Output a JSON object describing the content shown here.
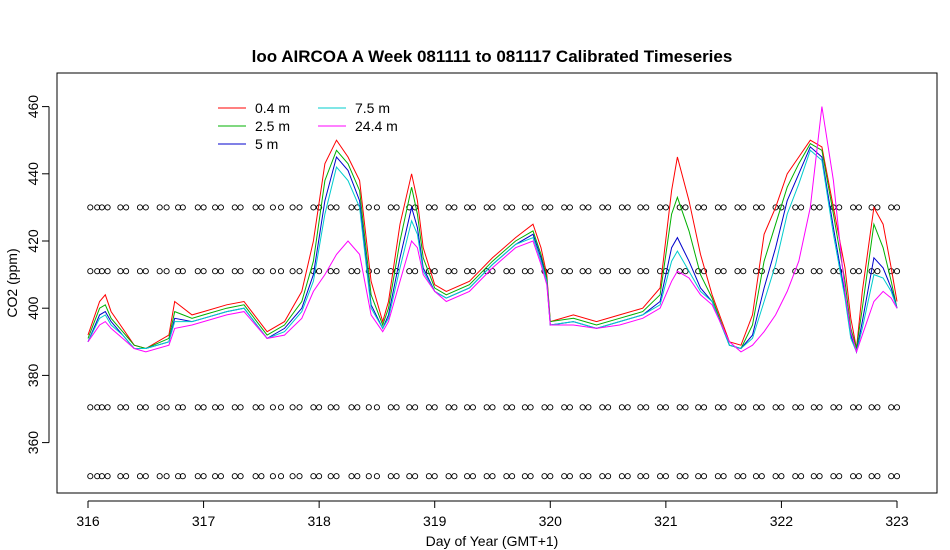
{
  "chart_data": {
    "type": "line",
    "title": "loo AIRCOA A  Week 081111 to 081117  Calibrated Timeseries",
    "xlabel": "Day of Year (GMT+1)",
    "ylabel": "CO2 (ppm)",
    "xlim": [
      316,
      323
    ],
    "ylim": [
      345,
      470
    ],
    "x_ticks": [
      316,
      317,
      318,
      319,
      320,
      321,
      322,
      323
    ],
    "y_ticks": [
      360,
      380,
      400,
      420,
      440,
      460
    ],
    "legend": "top-left",
    "series": [
      {
        "name": "0.4 m",
        "color": "#ff0000",
        "x": [
          316.0,
          316.1,
          316.15,
          316.2,
          316.3,
          316.4,
          316.5,
          316.7,
          316.75,
          316.9,
          317.0,
          317.2,
          317.35,
          317.55,
          317.7,
          317.85,
          317.95,
          318.05,
          318.15,
          318.25,
          318.35,
          318.45,
          318.55,
          318.6,
          318.7,
          318.8,
          318.85,
          318.9,
          319.0,
          319.1,
          319.3,
          319.5,
          319.7,
          319.85,
          319.92,
          319.97,
          320.0,
          320.2,
          320.4,
          320.6,
          320.8,
          320.95,
          321.05,
          321.1,
          321.2,
          321.3,
          321.4,
          321.55,
          321.65,
          321.75,
          321.85,
          321.95,
          322.05,
          322.15,
          322.25,
          322.35,
          322.45,
          322.55,
          322.6,
          322.65,
          322.7,
          322.8,
          322.88,
          322.95,
          323.0
        ],
        "values": [
          392,
          402,
          404,
          399,
          394,
          389,
          388,
          392,
          402,
          398,
          399,
          401,
          402,
          393,
          396,
          405,
          420,
          443,
          450,
          445,
          438,
          408,
          396,
          402,
          425,
          440,
          432,
          418,
          407,
          405,
          408,
          415,
          421,
          425,
          418,
          410,
          396,
          398,
          396,
          398,
          400,
          406,
          435,
          445,
          432,
          416,
          404,
          390,
          389,
          398,
          422,
          430,
          440,
          445,
          450,
          448,
          430,
          412,
          397,
          388,
          405,
          430,
          425,
          412,
          402
        ]
      },
      {
        "name": "2.5 m",
        "color": "#00b000",
        "x": [
          316.0,
          316.1,
          316.15,
          316.2,
          316.3,
          316.4,
          316.5,
          316.7,
          316.75,
          316.9,
          317.0,
          317.2,
          317.35,
          317.55,
          317.7,
          317.85,
          317.95,
          318.05,
          318.15,
          318.25,
          318.35,
          318.45,
          318.55,
          318.6,
          318.7,
          318.8,
          318.85,
          318.9,
          319.0,
          319.1,
          319.3,
          319.5,
          319.7,
          319.85,
          319.92,
          319.97,
          320.0,
          320.2,
          320.4,
          320.6,
          320.8,
          320.95,
          321.05,
          321.1,
          321.2,
          321.3,
          321.4,
          321.55,
          321.65,
          321.75,
          321.85,
          321.95,
          322.05,
          322.15,
          322.25,
          322.35,
          322.45,
          322.55,
          322.6,
          322.65,
          322.7,
          322.8,
          322.88,
          322.95,
          323.0
        ],
        "values": [
          391,
          400,
          401,
          397,
          393,
          389,
          388,
          391,
          399,
          397,
          398,
          400,
          401,
          392,
          395,
          402,
          414,
          438,
          447,
          443,
          435,
          404,
          395,
          400,
          420,
          436,
          428,
          415,
          406,
          404,
          407,
          414,
          420,
          423,
          416,
          409,
          396,
          397,
          395,
          397,
          399,
          404,
          428,
          433,
          423,
          410,
          403,
          389,
          388,
          395,
          414,
          425,
          436,
          443,
          449,
          447,
          428,
          408,
          394,
          388,
          400,
          425,
          418,
          408,
          400
        ]
      },
      {
        "name": "5 m",
        "color": "#0000cc",
        "x": [
          316.0,
          316.1,
          316.15,
          316.2,
          316.3,
          316.4,
          316.5,
          316.7,
          316.75,
          316.9,
          317.0,
          317.2,
          317.35,
          317.55,
          317.7,
          317.85,
          317.95,
          318.05,
          318.15,
          318.25,
          318.35,
          318.45,
          318.55,
          318.6,
          318.7,
          318.8,
          318.85,
          318.9,
          319.0,
          319.1,
          319.3,
          319.5,
          319.7,
          319.85,
          319.92,
          319.97,
          320.0,
          320.2,
          320.4,
          320.6,
          320.8,
          320.95,
          321.05,
          321.1,
          321.2,
          321.3,
          321.4,
          321.55,
          321.65,
          321.75,
          321.85,
          321.95,
          322.05,
          322.15,
          322.25,
          322.35,
          322.45,
          322.55,
          322.6,
          322.65,
          322.7,
          322.8,
          322.88,
          322.95,
          323.0
        ],
        "values": [
          390,
          398,
          399,
          396,
          392,
          388,
          388,
          390,
          397,
          396,
          397,
          399,
          400,
          391,
          394,
          400,
          410,
          432,
          445,
          441,
          432,
          401,
          394,
          398,
          415,
          430,
          424,
          412,
          405,
          403,
          406,
          413,
          419,
          422,
          415,
          408,
          395,
          396,
          394,
          396,
          398,
          402,
          418,
          421,
          414,
          406,
          402,
          389,
          388,
          392,
          406,
          418,
          432,
          440,
          448,
          445,
          424,
          404,
          392,
          387,
          396,
          415,
          412,
          406,
          400
        ]
      },
      {
        "name": "7.5 m",
        "color": "#00cccc",
        "x": [
          316.0,
          316.1,
          316.15,
          316.2,
          316.3,
          316.4,
          316.5,
          316.7,
          316.75,
          316.9,
          317.0,
          317.2,
          317.35,
          317.55,
          317.7,
          317.85,
          317.95,
          318.05,
          318.15,
          318.25,
          318.35,
          318.45,
          318.55,
          318.6,
          318.7,
          318.8,
          318.85,
          318.9,
          319.0,
          319.1,
          319.3,
          319.5,
          319.7,
          319.85,
          319.92,
          319.97,
          320.0,
          320.2,
          320.4,
          320.6,
          320.8,
          320.95,
          321.05,
          321.1,
          321.2,
          321.3,
          321.4,
          321.55,
          321.65,
          321.75,
          321.85,
          321.95,
          322.05,
          322.15,
          322.25,
          322.35,
          322.45,
          322.55,
          322.6,
          322.65,
          322.7,
          322.8,
          322.88,
          322.95,
          323.0
        ],
        "values": [
          390,
          397,
          398,
          395,
          392,
          388,
          388,
          390,
          396,
          396,
          397,
          399,
          400,
          391,
          393,
          399,
          408,
          428,
          442,
          438,
          430,
          400,
          394,
          397,
          412,
          426,
          422,
          411,
          405,
          403,
          406,
          413,
          419,
          421,
          414,
          408,
          395,
          396,
          394,
          396,
          398,
          401,
          414,
          417,
          411,
          405,
          402,
          389,
          388,
          391,
          402,
          413,
          428,
          437,
          447,
          444,
          422,
          403,
          391,
          387,
          394,
          410,
          409,
          405,
          400
        ]
      },
      {
        "name": "24.4 m",
        "color": "#ff00ff",
        "x": [
          316.0,
          316.1,
          316.15,
          316.2,
          316.3,
          316.4,
          316.5,
          316.7,
          316.75,
          316.9,
          317.0,
          317.2,
          317.35,
          317.55,
          317.7,
          317.85,
          317.95,
          318.05,
          318.15,
          318.25,
          318.35,
          318.45,
          318.55,
          318.6,
          318.7,
          318.8,
          318.85,
          318.9,
          319.0,
          319.1,
          319.3,
          319.5,
          319.7,
          319.85,
          319.92,
          319.97,
          320.0,
          320.2,
          320.4,
          320.6,
          320.8,
          320.95,
          321.05,
          321.1,
          321.2,
          321.3,
          321.4,
          321.55,
          321.65,
          321.75,
          321.85,
          321.95,
          322.05,
          322.15,
          322.25,
          322.35,
          322.45,
          322.55,
          322.6,
          322.65,
          322.7,
          322.8,
          322.88,
          322.95,
          323.0
        ],
        "values": [
          390,
          395,
          396,
          394,
          391,
          388,
          387,
          389,
          394,
          395,
          396,
          398,
          399,
          391,
          392,
          397,
          405,
          410,
          416,
          420,
          416,
          398,
          393,
          396,
          408,
          420,
          418,
          410,
          405,
          402,
          405,
          412,
          418,
          420,
          413,
          407,
          395,
          395,
          394,
          395,
          397,
          400,
          408,
          411,
          409,
          404,
          401,
          390,
          387,
          389,
          393,
          398,
          405,
          414,
          430,
          460,
          438,
          405,
          393,
          387,
          392,
          402,
          405,
          403,
          400
        ]
      }
    ],
    "reference_markers": {
      "symbol": "open circle",
      "levels": [
        430,
        411,
        370.5,
        350
      ],
      "x": [
        316.02,
        316.08,
        316.12,
        316.17,
        316.28,
        316.33,
        316.45,
        316.5,
        316.62,
        316.68,
        316.78,
        316.82,
        316.95,
        317.0,
        317.1,
        317.15,
        317.27,
        317.32,
        317.45,
        317.5,
        317.6,
        317.67,
        317.77,
        317.83,
        317.95,
        318.0,
        318.1,
        318.15,
        318.28,
        318.33,
        318.43,
        318.5,
        318.62,
        318.67,
        318.78,
        318.83,
        318.95,
        319.0,
        319.12,
        319.17,
        319.28,
        319.33,
        319.45,
        319.5,
        319.62,
        319.67,
        319.78,
        319.83,
        319.95,
        320.0,
        320.12,
        320.17,
        320.28,
        320.33,
        320.45,
        320.5,
        320.62,
        320.67,
        320.78,
        320.83,
        320.95,
        321.0,
        321.12,
        321.17,
        321.28,
        321.33,
        321.45,
        321.5,
        321.62,
        321.67,
        321.78,
        321.83,
        321.95,
        322.0,
        322.12,
        322.17,
        322.28,
        322.33,
        322.45,
        322.5,
        322.62,
        322.67,
        322.78,
        322.83,
        322.95,
        323.0
      ]
    }
  }
}
